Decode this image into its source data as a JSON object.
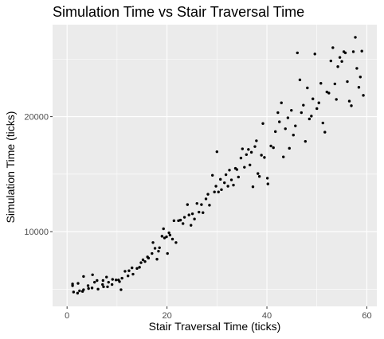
{
  "chart_data": {
    "type": "scatter",
    "title": "Simulation Time vs Stair Traversal Time",
    "xlabel": "Stair Traversal Time (ticks)",
    "ylabel": "Simulation Time (ticks)",
    "xlim": [
      -2.9,
      62.0
    ],
    "ylim": [
      3500,
      28000
    ],
    "x_ticks": [
      0,
      20,
      40,
      60
    ],
    "x_tick_labels": [
      "0",
      "20",
      "40",
      "60"
    ],
    "y_ticks": [
      10000,
      20000
    ],
    "y_tick_labels": [
      "10000",
      "20000"
    ],
    "x_minor_ticks": [
      10,
      30,
      50
    ],
    "y_minor_ticks": [
      5000,
      15000,
      25000
    ],
    "grid": true,
    "colors": {
      "panel": "#ebebeb",
      "grid": "#ffffff",
      "point": "#000000"
    },
    "points": [
      [
        1.1,
        5300
      ],
      [
        1.1,
        5450
      ],
      [
        1.3,
        4750
      ],
      [
        2.1,
        4650
      ],
      [
        2.2,
        5500
      ],
      [
        2.5,
        4850
      ],
      [
        3.1,
        4800
      ],
      [
        3.3,
        6100
      ],
      [
        3.3,
        4950
      ],
      [
        4.2,
        5300
      ],
      [
        4.3,
        5050
      ],
      [
        5.0,
        5100
      ],
      [
        5.1,
        6250
      ],
      [
        5.5,
        5600
      ],
      [
        6.0,
        5750
      ],
      [
        6.2,
        5000
      ],
      [
        7.1,
        5400
      ],
      [
        7.2,
        5750
      ],
      [
        7.3,
        5200
      ],
      [
        7.9,
        6050
      ],
      [
        8.1,
        5200
      ],
      [
        8.3,
        5600
      ],
      [
        9.0,
        5400
      ],
      [
        9.1,
        5850
      ],
      [
        9.8,
        5800
      ],
      [
        10.3,
        5800
      ],
      [
        10.5,
        5650
      ],
      [
        10.8,
        4950
      ],
      [
        11.0,
        5950
      ],
      [
        11.6,
        6550
      ],
      [
        12.2,
        6150
      ],
      [
        12.4,
        6600
      ],
      [
        13.0,
        6850
      ],
      [
        13.2,
        6300
      ],
      [
        14.0,
        6800
      ],
      [
        14.5,
        6900
      ],
      [
        14.8,
        7300
      ],
      [
        15.2,
        7550
      ],
      [
        15.6,
        7400
      ],
      [
        16.1,
        7800
      ],
      [
        16.3,
        7700
      ],
      [
        17.0,
        8100
      ],
      [
        17.2,
        9050
      ],
      [
        17.6,
        8550
      ],
      [
        18.0,
        7600
      ],
      [
        18.3,
        8300
      ],
      [
        18.5,
        8600
      ],
      [
        19.0,
        9600
      ],
      [
        19.3,
        10250
      ],
      [
        19.5,
        9450
      ],
      [
        19.9,
        9550
      ],
      [
        20.1,
        8100
      ],
      [
        20.4,
        9900
      ],
      [
        20.6,
        9700
      ],
      [
        21.1,
        9350
      ],
      [
        21.4,
        10950
      ],
      [
        21.8,
        9050
      ],
      [
        22.3,
        10950
      ],
      [
        22.7,
        11000
      ],
      [
        23.2,
        10700
      ],
      [
        23.5,
        11250
      ],
      [
        24.1,
        12350
      ],
      [
        24.4,
        11450
      ],
      [
        24.8,
        10550
      ],
      [
        25.1,
        11550
      ],
      [
        25.5,
        11100
      ],
      [
        26.0,
        12450
      ],
      [
        26.4,
        11700
      ],
      [
        26.9,
        12350
      ],
      [
        27.2,
        11650
      ],
      [
        27.8,
        12850
      ],
      [
        28.2,
        13250
      ],
      [
        28.5,
        12300
      ],
      [
        29.1,
        14900
      ],
      [
        29.5,
        13450
      ],
      [
        29.8,
        13950
      ],
      [
        30.0,
        16950
      ],
      [
        30.3,
        13450
      ],
      [
        30.7,
        14550
      ],
      [
        30.9,
        13650
      ],
      [
        31.5,
        14250
      ],
      [
        31.8,
        14950
      ],
      [
        32.2,
        13950
      ],
      [
        32.5,
        15350
      ],
      [
        32.9,
        14500
      ],
      [
        33.3,
        14050
      ],
      [
        33.7,
        15500
      ],
      [
        34.0,
        15400
      ],
      [
        34.3,
        14750
      ],
      [
        34.8,
        16400
      ],
      [
        35.1,
        17200
      ],
      [
        35.5,
        15600
      ],
      [
        35.9,
        16700
      ],
      [
        36.3,
        17150
      ],
      [
        36.6,
        15800
      ],
      [
        36.9,
        16900
      ],
      [
        37.2,
        13900
      ],
      [
        37.6,
        17400
      ],
      [
        37.9,
        17900
      ],
      [
        38.2,
        15050
      ],
      [
        38.5,
        14800
      ],
      [
        38.9,
        16650
      ],
      [
        39.2,
        19400
      ],
      [
        39.5,
        16450
      ],
      [
        40.1,
        14650
      ],
      [
        40.2,
        14150
      ],
      [
        40.8,
        17450
      ],
      [
        41.3,
        17300
      ],
      [
        41.7,
        18700
      ],
      [
        42.2,
        20350
      ],
      [
        42.5,
        19550
      ],
      [
        42.9,
        21200
      ],
      [
        43.3,
        16500
      ],
      [
        43.7,
        18950
      ],
      [
        44.2,
        19900
      ],
      [
        44.5,
        17250
      ],
      [
        44.9,
        20550
      ],
      [
        45.3,
        18400
      ],
      [
        45.7,
        19200
      ],
      [
        46.1,
        25550
      ],
      [
        46.6,
        23200
      ],
      [
        46.9,
        20350
      ],
      [
        47.3,
        21000
      ],
      [
        47.7,
        17850
      ],
      [
        48.1,
        22500
      ],
      [
        48.5,
        19800
      ],
      [
        48.9,
        20050
      ],
      [
        49.2,
        21550
      ],
      [
        49.6,
        25450
      ],
      [
        50.0,
        20700
      ],
      [
        50.4,
        21200
      ],
      [
        50.8,
        22900
      ],
      [
        51.2,
        19450
      ],
      [
        51.6,
        18650
      ],
      [
        52.0,
        22150
      ],
      [
        52.4,
        22050
      ],
      [
        52.8,
        24850
      ],
      [
        53.2,
        26000
      ],
      [
        53.6,
        22850
      ],
      [
        53.9,
        21500
      ],
      [
        54.2,
        24350
      ],
      [
        54.6,
        25150
      ],
      [
        55.0,
        24800
      ],
      [
        55.4,
        25650
      ],
      [
        55.7,
        25550
      ],
      [
        56.1,
        23050
      ],
      [
        56.5,
        21350
      ],
      [
        56.9,
        20950
      ],
      [
        57.3,
        25650
      ],
      [
        57.7,
        26900
      ],
      [
        58.0,
        24200
      ],
      [
        58.4,
        22550
      ],
      [
        58.7,
        23450
      ],
      [
        59.0,
        25700
      ],
      [
        59.3,
        21850
      ]
    ]
  }
}
